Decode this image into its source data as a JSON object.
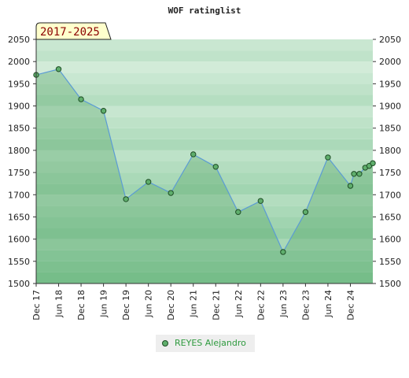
{
  "chart_data": {
    "type": "line",
    "title": "WOF ratinglist",
    "period_label": "2017-2025",
    "ylim": [
      1500,
      2050
    ],
    "yticks": [
      1500,
      1550,
      1600,
      1650,
      1700,
      1750,
      1800,
      1850,
      1900,
      1950,
      2000,
      2050
    ],
    "xtick_labels": [
      "Dec 17",
      "Jun 18",
      "Dec 18",
      "Jun 19",
      "Dec 19",
      "Jun 20",
      "Dec 20",
      "Jun 21",
      "Dec 21",
      "Jun 22",
      "Dec 22",
      "Jun 23",
      "Dec 23",
      "Jun 24",
      "Dec 24"
    ],
    "series": [
      {
        "name": "REYES Alejandro",
        "values": [
          1970,
          1983,
          1915,
          1889,
          1690,
          1729,
          1704,
          1791,
          1763,
          1661,
          1686,
          1571,
          1661,
          1784,
          1720,
          1747,
          1747,
          1761,
          1765,
          1771
        ]
      }
    ],
    "legend": "bottom",
    "colors": {
      "line": "#5b9bd5",
      "marker": "#5fae6c",
      "band_dark": "#7cc493",
      "band_light": "#eaf6ec"
    }
  }
}
